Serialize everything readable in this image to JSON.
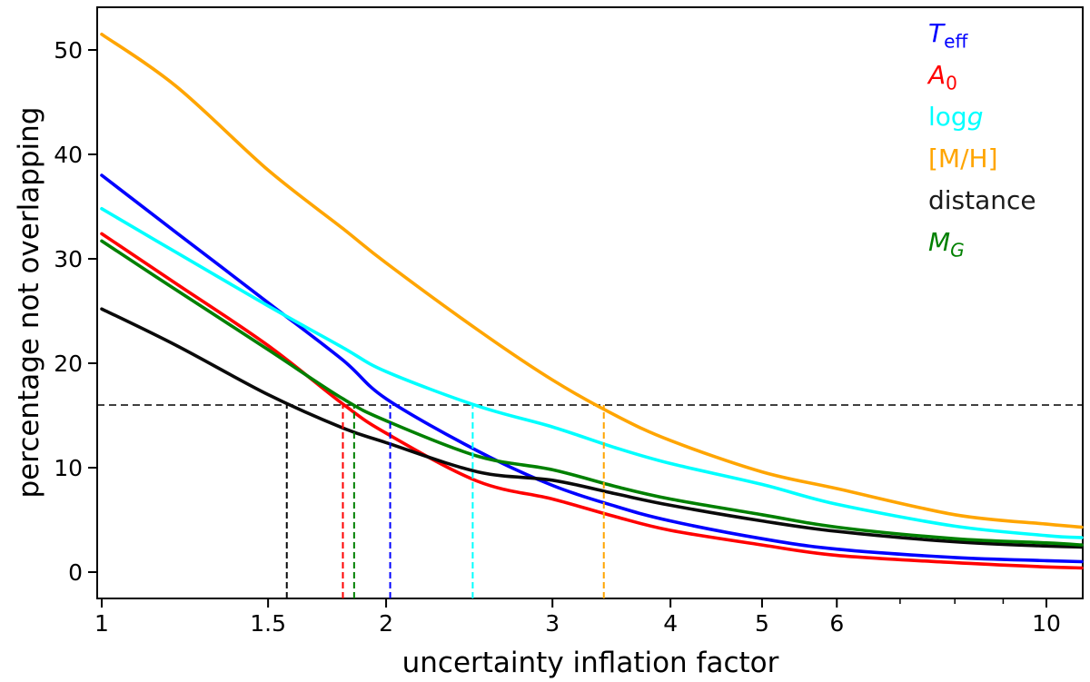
{
  "chart_data": {
    "type": "line",
    "title": "",
    "xlabel": "uncertainty inflation factor",
    "ylabel": "percentage not overlapping",
    "x_scale": "log",
    "xlim": [
      1,
      10.9
    ],
    "ylim": [
      -2.6,
      54.1
    ],
    "grid": false,
    "legend_position": "upper right",
    "x_ticks": [
      {
        "value": 1,
        "label": "1"
      },
      {
        "value": 1.5,
        "label": "1.5"
      },
      {
        "value": 2,
        "label": "2"
      },
      {
        "value": 3,
        "label": "3"
      },
      {
        "value": 4,
        "label": "4"
      },
      {
        "value": 5,
        "label": "5"
      },
      {
        "value": 6,
        "label": "6"
      },
      {
        "value": 10,
        "label": "10"
      }
    ],
    "x_minor_ticks": [
      7,
      8,
      9
    ],
    "y_ticks": [
      {
        "value": 0,
        "label": "0"
      },
      {
        "value": 10,
        "label": "10"
      },
      {
        "value": 20,
        "label": "20"
      },
      {
        "value": 30,
        "label": "30"
      },
      {
        "value": 40,
        "label": "40"
      },
      {
        "value": 50,
        "label": "50"
      }
    ],
    "threshold_y": 16,
    "x": [
      1,
      1.2,
      1.5,
      1.8,
      2,
      2.5,
      3,
      3.5,
      4,
      5,
      6,
      8,
      10,
      10.9
    ],
    "series": [
      {
        "name": "Teff",
        "color": "#0000ff",
        "values": [
          38.0,
          32.5,
          25.8,
          20.3,
          16.6,
          11.6,
          8.3,
          6.3,
          4.9,
          3.2,
          2.2,
          1.4,
          1.1,
          1.0
        ],
        "threshold_crossing_x": 2.02
      },
      {
        "name": "A0",
        "color": "#ff0000",
        "values": [
          32.4,
          27.6,
          21.7,
          16.1,
          13.3,
          8.7,
          7.0,
          5.3,
          4.0,
          2.6,
          1.6,
          0.9,
          0.5,
          0.4
        ],
        "threshold_crossing_x": 1.8
      },
      {
        "name": "logg",
        "color": "#00ffff",
        "values": [
          34.8,
          30.6,
          25.5,
          21.5,
          19.2,
          15.9,
          13.9,
          11.9,
          10.4,
          8.4,
          6.5,
          4.4,
          3.5,
          3.3
        ],
        "threshold_crossing_x": 2.47
      },
      {
        "name": "[M/H]",
        "color": "#ffa500",
        "values": [
          51.5,
          46.5,
          38.5,
          32.9,
          29.6,
          23.2,
          18.4,
          15.0,
          12.6,
          9.6,
          8.0,
          5.5,
          4.6,
          4.3
        ],
        "threshold_crossing_x": 3.4
      },
      {
        "name": "distance",
        "color": "#0a0a0a",
        "values": [
          25.2,
          21.7,
          17.0,
          13.8,
          12.4,
          9.6,
          8.8,
          7.5,
          6.4,
          4.9,
          3.9,
          2.9,
          2.5,
          2.4
        ],
        "threshold_crossing_x": 1.57
      },
      {
        "name": "MG",
        "color": "#008000",
        "values": [
          31.7,
          27.0,
          21.3,
          16.6,
          14.5,
          11.1,
          9.8,
          8.2,
          7.0,
          5.5,
          4.3,
          3.2,
          2.8,
          2.6
        ],
        "threshold_crossing_x": 1.85
      }
    ],
    "legend": [
      {
        "name": "Teff",
        "pre": "",
        "it": "T",
        "sub": "eff",
        "sub_italic": false,
        "color": "#0000ff"
      },
      {
        "name": "A0",
        "pre": "",
        "it": "A",
        "sub": "0",
        "sub_italic": false,
        "color": "#ff0000"
      },
      {
        "name": "logg",
        "pre": "log",
        "it": "g",
        "sub": "",
        "sub_italic": false,
        "color": "#00ffff"
      },
      {
        "name": "[M/H]",
        "pre": "[M/H]",
        "it": "",
        "sub": "",
        "sub_italic": false,
        "color": "#ffa500"
      },
      {
        "name": "distance",
        "pre": "distance",
        "it": "",
        "sub": "",
        "sub_italic": false,
        "color": "#1a1a1a"
      },
      {
        "name": "MG",
        "pre": "",
        "it": "M",
        "sub": "G",
        "sub_italic": true,
        "color": "#008000"
      }
    ]
  }
}
